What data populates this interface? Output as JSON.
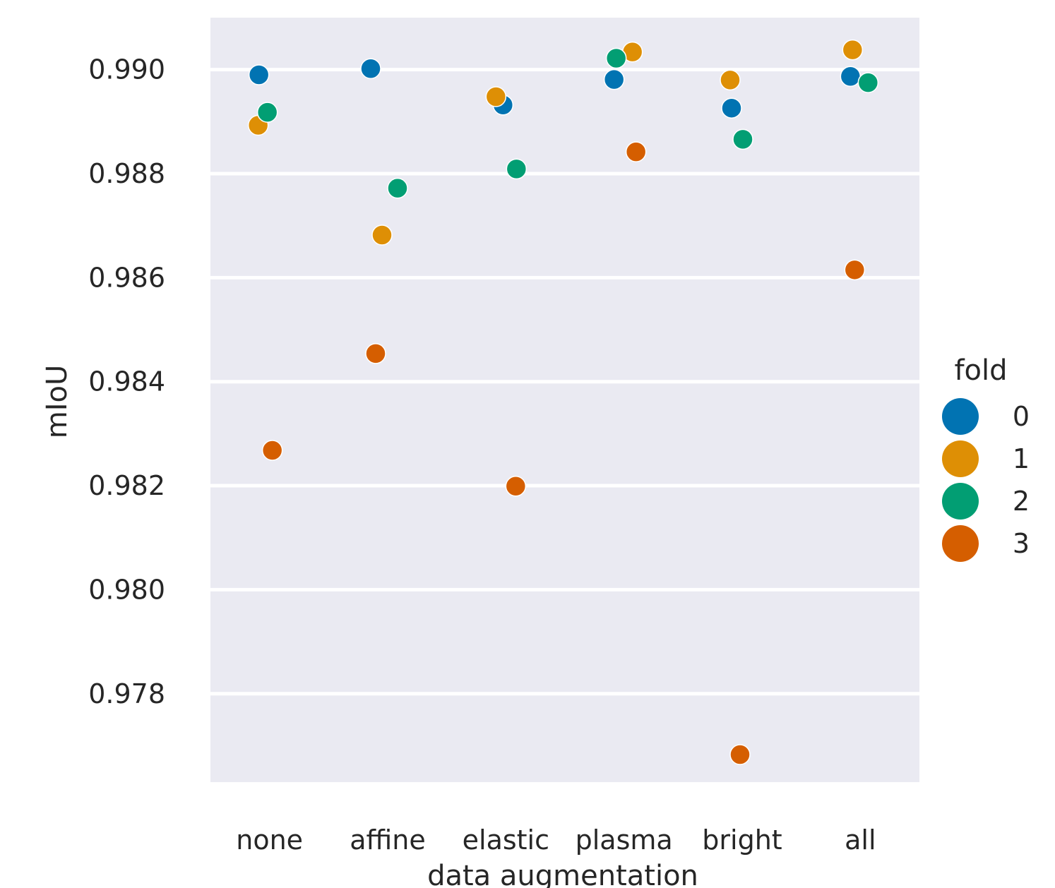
{
  "chart_data": {
    "type": "scatter",
    "title": "",
    "xlabel": "data augmentation",
    "ylabel": "mIoU",
    "categories": [
      "none",
      "affine",
      "elastic",
      "plasma",
      "bright",
      "all"
    ],
    "ylim": [
      0.9763,
      0.991
    ],
    "yticks": [
      "0.978",
      "0.980",
      "0.982",
      "0.984",
      "0.986",
      "0.988",
      "0.990"
    ],
    "grid": true,
    "legend": {
      "title": "fold",
      "placement": "right"
    },
    "series": [
      {
        "name": "0",
        "color": "#0173b2",
        "values": [
          0.9899,
          0.99002,
          0.98932,
          0.98981,
          0.98926,
          0.98987
        ]
      },
      {
        "name": "1",
        "color": "#de8f05",
        "values": [
          0.98893,
          0.98682,
          0.98948,
          0.99034,
          0.9898,
          0.99038
        ]
      },
      {
        "name": "2",
        "color": "#029e73",
        "values": [
          0.98918,
          0.98772,
          0.98809,
          0.99022,
          0.98866,
          0.98975
        ]
      },
      {
        "name": "3",
        "color": "#d55e00",
        "values": [
          0.98268,
          0.98454,
          0.98199,
          0.98842,
          0.97683,
          0.98615
        ]
      }
    ]
  }
}
